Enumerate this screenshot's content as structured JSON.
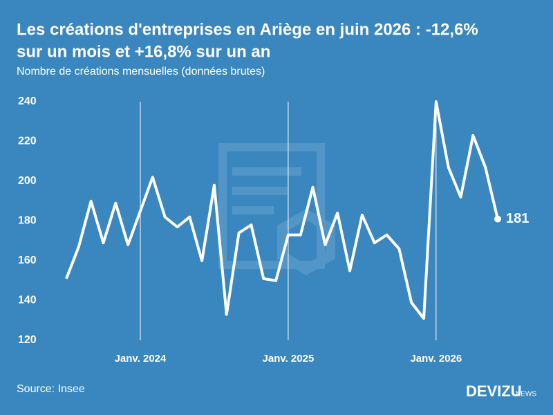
{
  "chart_data": {
    "type": "line",
    "title": "Les créations d'entreprises en Ariège en juin 2026 : -12,6%",
    "title_line2": "sur un mois et +16,8% sur un an",
    "subtitle": "Nombre de créations mensuelles (données brutes)",
    "source": "Source: Insee",
    "brand": "DEVIZU",
    "brand_suffix": "NEWS",
    "categories": [
      null,
      null,
      null,
      null,
      null,
      null,
      "Janv. 2024",
      null,
      null,
      null,
      null,
      null,
      null,
      null,
      null,
      null,
      null,
      null,
      "Janv. 2025",
      null,
      null,
      null,
      null,
      null,
      null,
      null,
      null,
      null,
      null,
      null,
      "Janv. 2026",
      null,
      null,
      null,
      null,
      null
    ],
    "series": [
      {
        "name": "Créations",
        "color": "#ffffff",
        "values": [
          151,
          167,
          190,
          169,
          189,
          168,
          185,
          202,
          182,
          177,
          182,
          160,
          198,
          133,
          174,
          178,
          151,
          150,
          173,
          173,
          197,
          168,
          184,
          155,
          183,
          169,
          173,
          166,
          139,
          131,
          240,
          207,
          192,
          223,
          207,
          181
        ]
      }
    ],
    "ylim": [
      120,
      240
    ],
    "yticks": [
      120,
      140,
      160,
      180,
      200,
      220,
      240
    ],
    "grid": true
  }
}
